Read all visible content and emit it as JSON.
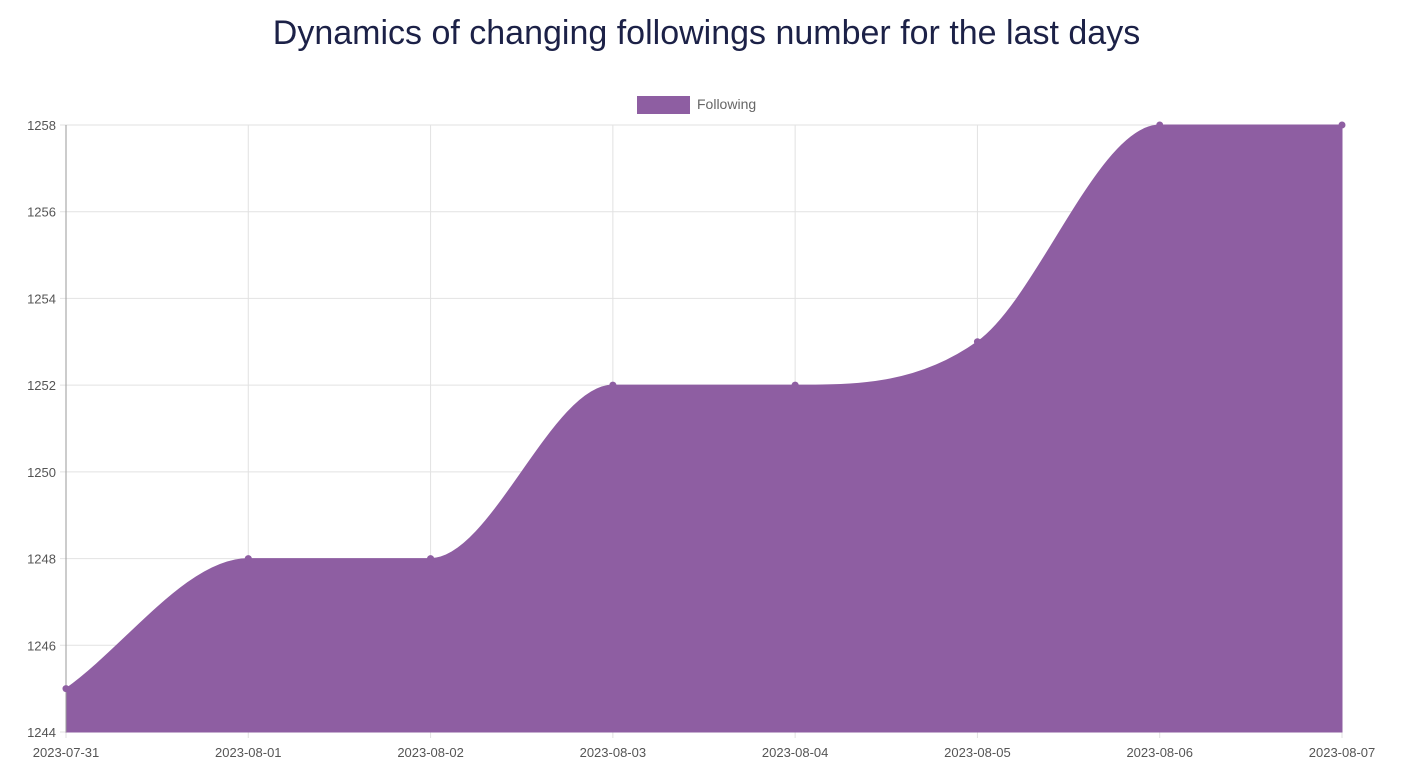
{
  "chart_data": {
    "type": "area",
    "title": "Dynamics of changing followings number for the last days",
    "x": [
      "2023-07-31",
      "2023-08-01",
      "2023-08-02",
      "2023-08-03",
      "2023-08-04",
      "2023-08-05",
      "2023-08-06",
      "2023-08-07"
    ],
    "series": [
      {
        "name": "Following",
        "values": [
          1245,
          1248,
          1248,
          1252,
          1252,
          1253,
          1258,
          1258
        ],
        "color": "#8e5ea2"
      }
    ],
    "ylim": [
      1244,
      1258
    ],
    "yticks": [
      1244,
      1246,
      1248,
      1250,
      1252,
      1254,
      1256,
      1258
    ],
    "grid": true,
    "legend": "top-center",
    "smooth": true
  }
}
